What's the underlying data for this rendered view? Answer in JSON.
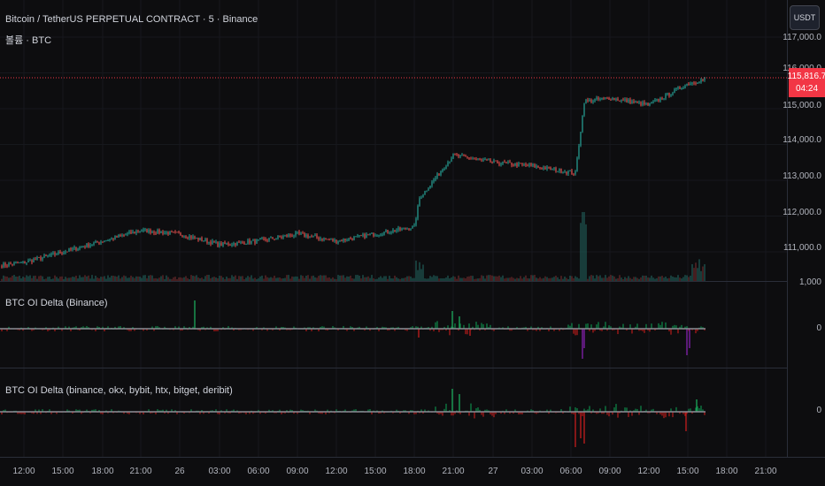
{
  "legend": {
    "symbol_title": "Bitcoin / TetherUS PERPETUAL CONTRACT · 5 · Binance",
    "volume_label": "볼륨 · BTC"
  },
  "price_axis": {
    "currency_button": "USDT",
    "labels": [
      "117,000.0",
      "116,000.0",
      "115,000.0",
      "114,000.0",
      "113,000.0",
      "112,000.0",
      "111,000.0",
      "1,000"
    ],
    "current_price": "115,816.7",
    "countdown": "04:24"
  },
  "indicators": [
    {
      "title": "BTC OI Delta (Binance)",
      "zero_label": "0"
    },
    {
      "title": "BTC OI Delta (binance, okx, bybit, htx, bitget, deribit)",
      "zero_label": "0"
    }
  ],
  "time_axis": {
    "labels": [
      "12:00",
      "15:00",
      "18:00",
      "21:00",
      "26",
      "03:00",
      "06:00",
      "09:00",
      "12:00",
      "15:00",
      "18:00",
      "21:00",
      "27",
      "03:00",
      "06:00",
      "09:00",
      "12:00",
      "15:00",
      "18:00",
      "21:00"
    ]
  },
  "colors": {
    "up": "#26a69a",
    "down": "#ef5350",
    "oi_positive": "#0e8a4a",
    "oi_negative": "#b71c1c",
    "oi_purple": "#7b1fa2",
    "price_line": "#f23645"
  },
  "chart_data": {
    "type": "candlestick",
    "interval": "5m",
    "price_range": [
      110300,
      117100
    ],
    "key_levels": [
      {
        "time": "12:00",
        "price": 110700
      },
      {
        "time": "18:00",
        "price": 111300
      },
      {
        "time": "21:00",
        "price": 111600
      },
      {
        "time": "26",
        "price": 111500
      },
      {
        "time": "03:00",
        "price": 111200
      },
      {
        "time": "06:00",
        "price": 111300
      },
      {
        "time": "09:00",
        "price": 111500
      },
      {
        "time": "12:00",
        "price": 111300
      },
      {
        "time": "15:00",
        "price": 111500
      },
      {
        "time": "18:00",
        "price": 111700
      },
      {
        "time": "18:30",
        "price": 112500
      },
      {
        "time": "21:00",
        "price": 113700
      },
      {
        "time": "27",
        "price": 113500
      },
      {
        "time": "03:00",
        "price": 113400
      },
      {
        "time": "06:00",
        "price": 113200
      },
      {
        "time": "07:00",
        "price": 115200
      },
      {
        "time": "09:00",
        "price": 115300
      },
      {
        "time": "12:00",
        "price": 115100
      },
      {
        "time": "15:00",
        "price": 115700
      },
      {
        "time": "16:00",
        "price": 115817
      }
    ]
  }
}
